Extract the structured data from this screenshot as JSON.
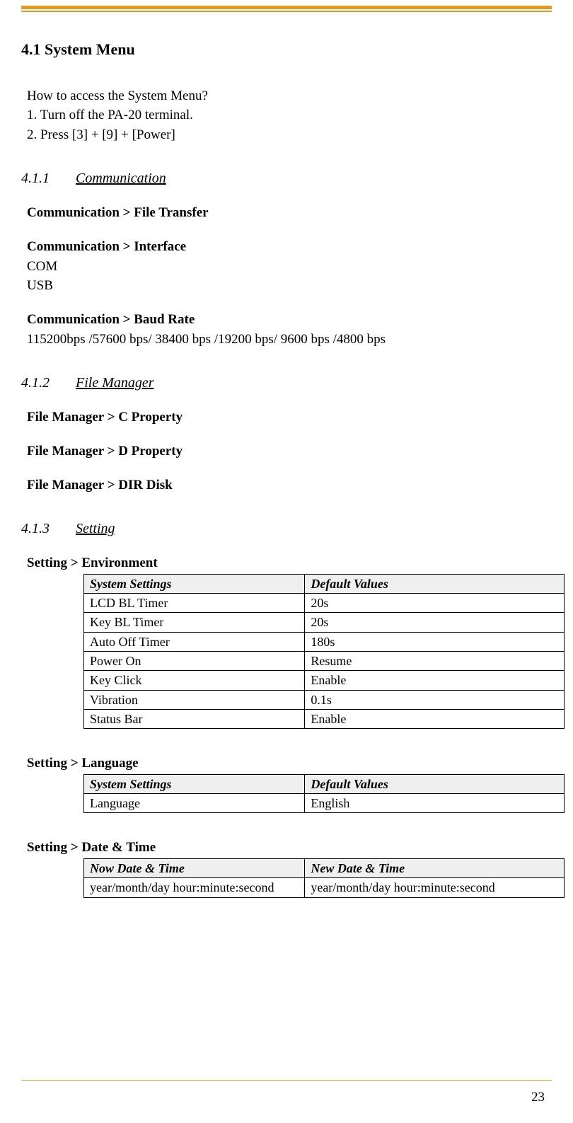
{
  "page": {
    "number": "23",
    "accent_color": "#e59923",
    "heading": "4.1  System Menu"
  },
  "intro": {
    "q": "How to access the System Menu?",
    "l1": "1. Turn off the PA-20 terminal.",
    "l2": "2. Press [3] + [9] + [Power]"
  },
  "s411": {
    "num": "4.1.1",
    "title": "Communication",
    "file_transfer": "Communication > File Transfer",
    "interface_head": "Communication > Interface",
    "interface_com": "COM",
    "interface_usb": "USB",
    "baud_head": "Communication > Baud Rate",
    "baud_list": "115200bps /57600 bps/ 38400 bps /19200 bps/ 9600 bps /4800 bps"
  },
  "s412": {
    "num": "4.1.2",
    "title": "File Manager",
    "c": "File Manager > C Property",
    "d": "File Manager > D Property",
    "dir": "File Manager > DIR Disk"
  },
  "s413": {
    "num": "4.1.3",
    "title": "Setting",
    "env": {
      "title": "Setting > Environment",
      "h1": "System Settings",
      "h2": "Default Values",
      "rows": [
        [
          "LCD BL Timer",
          "20s"
        ],
        [
          "Key BL Timer",
          "20s"
        ],
        [
          "Auto Off Timer",
          "180s"
        ],
        [
          "Power On",
          "Resume"
        ],
        [
          "Key Click",
          "Enable"
        ],
        [
          "Vibration",
          "0.1s"
        ],
        [
          "Status Bar",
          "Enable"
        ]
      ]
    },
    "lang": {
      "title": "Setting > Language",
      "h1": "System Settings",
      "h2": "Default Values",
      "rows": [
        [
          "Language",
          "English"
        ]
      ]
    },
    "dt": {
      "title": "Setting > Date & Time",
      "h1": "Now Date & Time",
      "h2": "New Date & Time",
      "rows": [
        [
          "year/month/day  hour:minute:second",
          "year/month/day  hour:minute:second"
        ]
      ]
    }
  }
}
